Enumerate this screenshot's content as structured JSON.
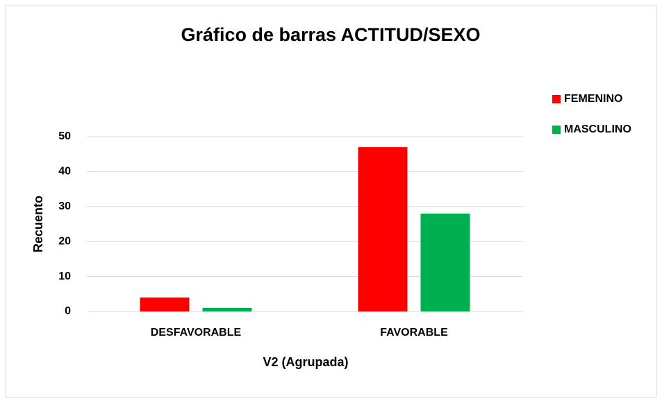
{
  "chart_data": {
    "type": "bar",
    "title": "Gráfico de barras ACTITUD/SEXO",
    "x_label": "V2 (Agrupada)",
    "y_label": "Recuento",
    "categories": [
      "DESFAVORABLE",
      "FAVORABLE"
    ],
    "series": [
      {
        "name": "FEMENINO",
        "color": "#ff0000",
        "values": [
          4,
          47
        ]
      },
      {
        "name": "MASCULINO",
        "color": "#00b050",
        "values": [
          1,
          28
        ]
      }
    ],
    "ylim": [
      0,
      50
    ],
    "yticks": [
      0,
      10,
      20,
      30,
      40,
      50
    ],
    "grid": true,
    "legend": "top-right"
  }
}
